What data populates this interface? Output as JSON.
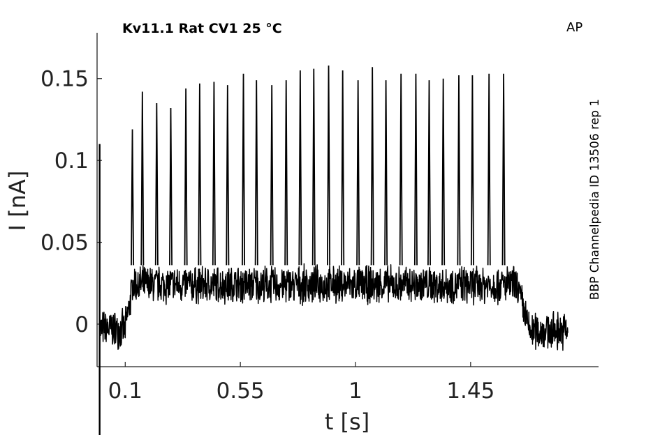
{
  "chart_data": {
    "type": "line",
    "title": "Kv11.1  Rat  CV1  25 °C",
    "corner_label": "AP",
    "side_label": "BBP Channelpedia ID 13506 rep 1",
    "xlabel": "t [s]",
    "ylabel": "I [nA]",
    "xlim": [
      -0.01,
      1.95
    ],
    "ylim": [
      -0.026,
      0.178
    ],
    "xticks": [
      0.1,
      0.55,
      1,
      1.45
    ],
    "xtick_labels": [
      "0.1",
      "0.55",
      "1",
      "1.45"
    ],
    "yticks": [
      0,
      0.05,
      0.1,
      0.15
    ],
    "ytick_labels": [
      "0",
      "0.05",
      "0.1",
      "0.15"
    ],
    "grid": false,
    "line_color": "#000000",
    "series": [
      {
        "stimulus_onset_artifact": {
          "t": 0.0,
          "peak": 0.11
        },
        "baseline_before": {
          "t": [
            0.0,
            0.1
          ],
          "mean": -0.003,
          "noise": 0.013
        },
        "ramp_up": {
          "t": [
            0.1,
            0.13
          ],
          "from": -0.003,
          "to": 0.024
        },
        "plateau": {
          "t": [
            0.13,
            1.63
          ],
          "mean": 0.024,
          "noise": 0.013
        },
        "ramp_down": {
          "t": [
            1.63,
            1.68
          ],
          "from": 0.024,
          "to": -0.004
        },
        "baseline_after": {
          "t": [
            1.68,
            1.83
          ],
          "mean": -0.004,
          "noise": 0.013
        },
        "spike_times": [
          0.128,
          0.167,
          0.223,
          0.278,
          0.337,
          0.391,
          0.447,
          0.5,
          0.562,
          0.613,
          0.673,
          0.729,
          0.784,
          0.837,
          0.895,
          0.95,
          1.01,
          1.066,
          1.119,
          1.178,
          1.236,
          1.288,
          1.343,
          1.404,
          1.457,
          1.522,
          1.579
        ],
        "spike_peaks": [
          0.119,
          0.142,
          0.135,
          0.132,
          0.144,
          0.147,
          0.148,
          0.146,
          0.153,
          0.149,
          0.146,
          0.149,
          0.155,
          0.156,
          0.158,
          0.155,
          0.149,
          0.157,
          0.149,
          0.153,
          0.153,
          0.149,
          0.15,
          0.152,
          0.152,
          0.153,
          0.153
        ]
      }
    ]
  }
}
